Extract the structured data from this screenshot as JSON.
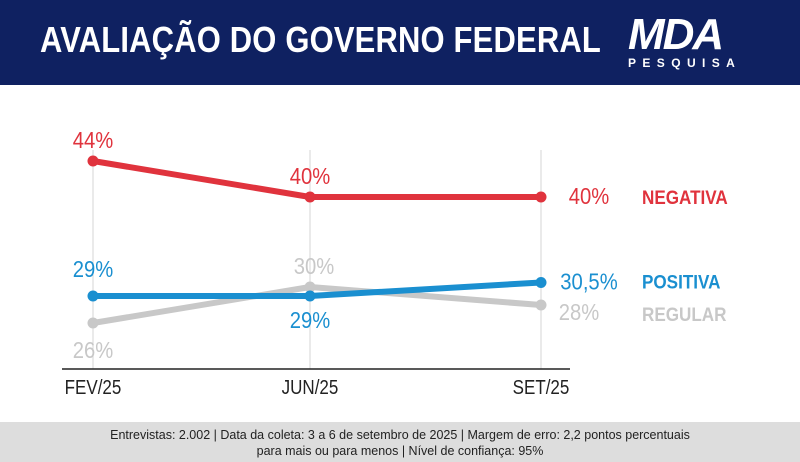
{
  "header": {
    "title": "AVALIAÇÃO DO GOVERNO FEDERAL",
    "logo_main": "MDA",
    "logo_sub": "PESQUISA"
  },
  "colors": {
    "header_bg": "#0f2161",
    "negativa": "#e0333d",
    "positiva": "#1a8fd0",
    "regular": "#c8c8c8",
    "footer_bg": "#dddddd"
  },
  "chart_data": {
    "type": "line",
    "categories": [
      "FEV/25",
      "JUN/25",
      "SET/25"
    ],
    "ylim": [
      20,
      50
    ],
    "grid": "vertical",
    "legend": "right, next to last point",
    "series": [
      {
        "name": "NEGATIVA",
        "values": [
          44,
          40,
          40
        ],
        "labels": [
          "44%",
          "40%",
          "40%"
        ],
        "color": "#e0333d"
      },
      {
        "name": "POSITIVA",
        "values": [
          29,
          29,
          30.5
        ],
        "labels": [
          "29%",
          "29%",
          "30,5%"
        ],
        "color": "#1a8fd0"
      },
      {
        "name": "REGULAR",
        "values": [
          26,
          30,
          28
        ],
        "labels": [
          "26%",
          "30%",
          "28%"
        ],
        "color": "#c8c8c8"
      }
    ]
  },
  "footer": {
    "line1": "Entrevistas: 2.002 | Data da coleta: 3 a 6 de setembro de 2025 | Margem de erro: 2,2 pontos percentuais",
    "line2": "para mais ou para menos | Nível de confiança: 95%"
  }
}
